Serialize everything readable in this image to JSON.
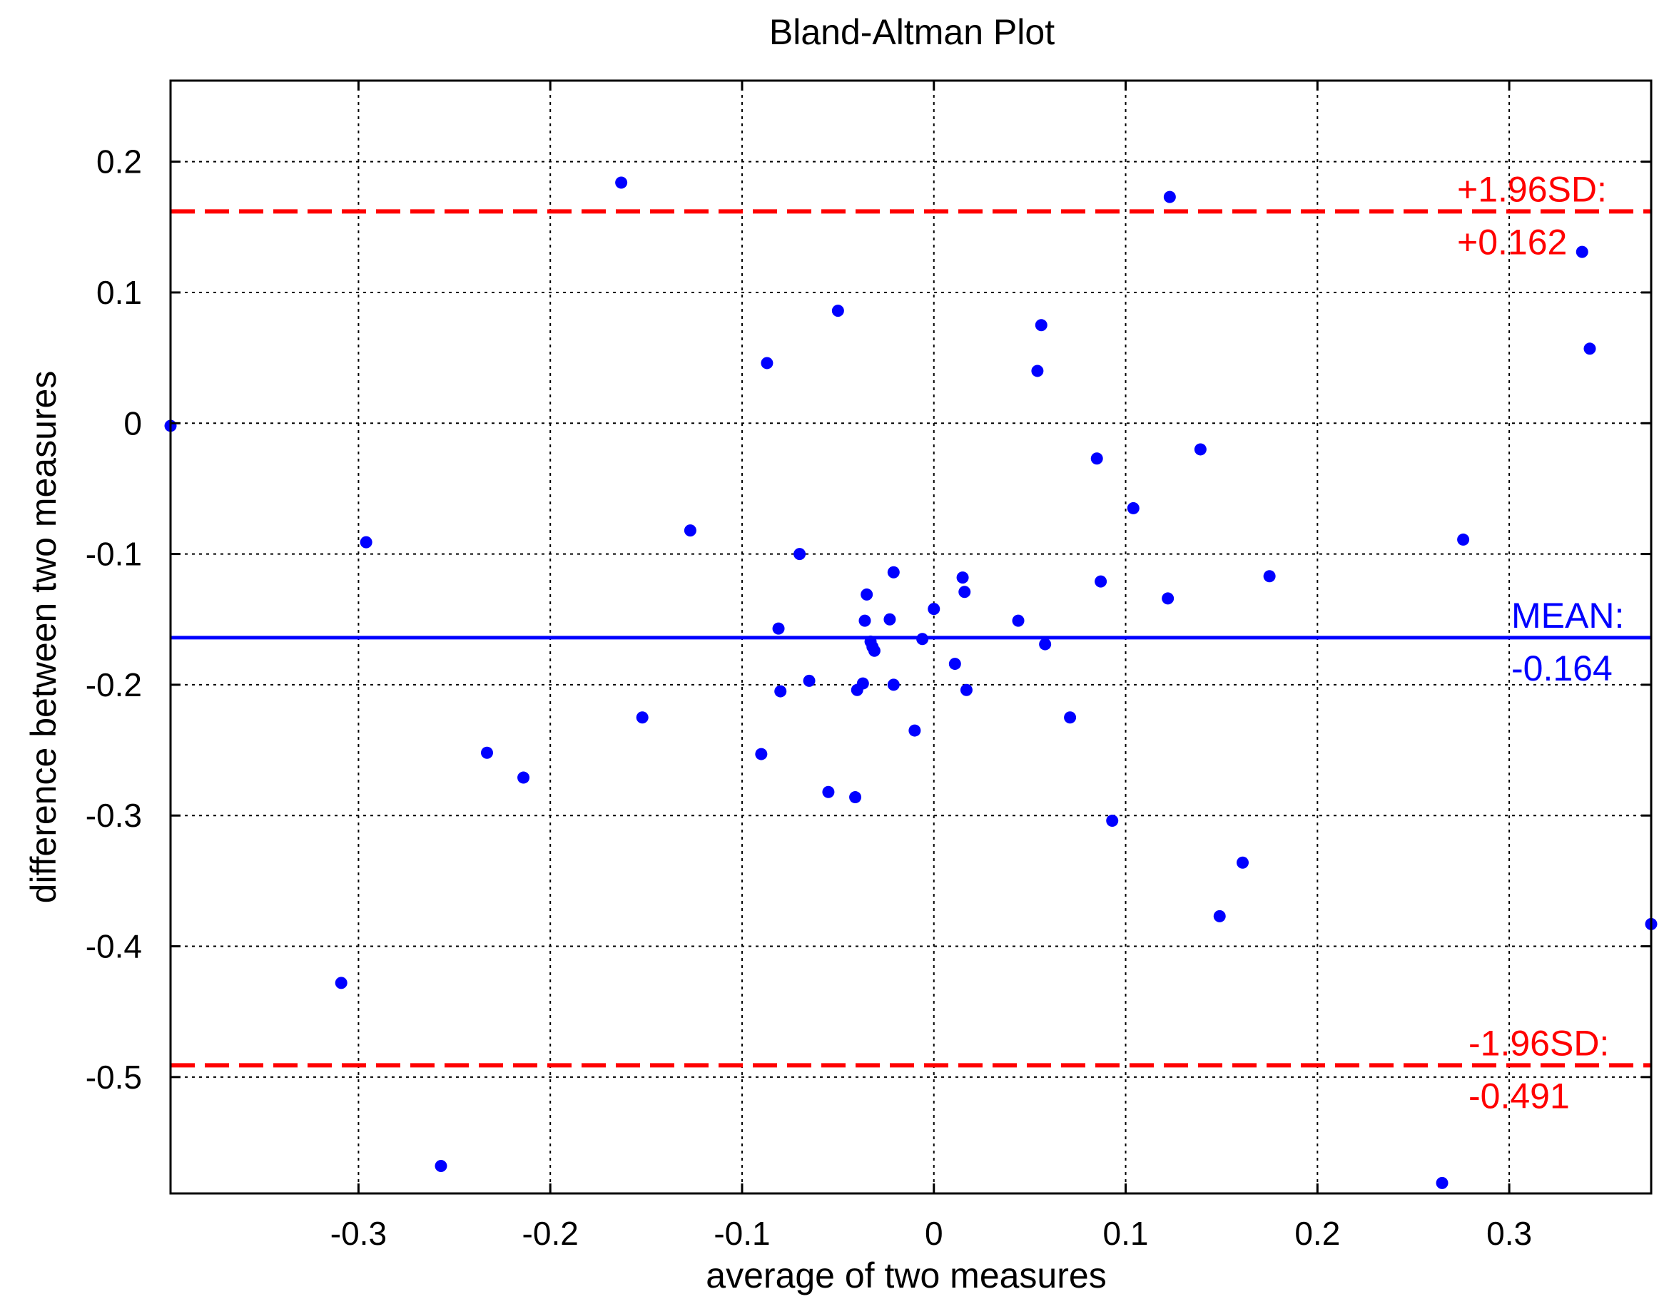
{
  "chart_data": {
    "type": "scatter",
    "title": "Bland-Altman Plot",
    "xlabel": "average of two measures",
    "ylabel": "difference between two measures",
    "xlim": [
      -0.398,
      0.374
    ],
    "ylim": [
      -0.589,
      0.262
    ],
    "xticks": [
      -0.3,
      -0.2,
      -0.1,
      0,
      0.1,
      0.2,
      0.3
    ],
    "yticks": [
      0.2,
      0.1,
      0,
      -0.1,
      -0.2,
      -0.3,
      -0.4,
      -0.5
    ],
    "xtick_labels": [
      "-0.3",
      "-0.2",
      "-0.1",
      "0",
      "0.1",
      "0.2",
      "0.3"
    ],
    "ytick_labels": [
      "0.2",
      "0.1",
      "0",
      "-0.1",
      "-0.2",
      "-0.3",
      "-0.4",
      "-0.5"
    ],
    "grid": true,
    "colors": {
      "points": "#0000ff",
      "mean": "#0000ff",
      "limits": "#ff0000",
      "grid": "#000000"
    },
    "reference_lines": [
      {
        "name": "upper-limit",
        "value": 0.162,
        "style": "dashed",
        "color": "#ff0000",
        "label_line1": "+1.96SD:",
        "label_line2": "+0.162"
      },
      {
        "name": "mean",
        "value": -0.164,
        "style": "solid",
        "color": "#0000ff",
        "label_line1": "MEAN:",
        "label_line2": "-0.164"
      },
      {
        "name": "lower-limit",
        "value": -0.491,
        "style": "dashed",
        "color": "#ff0000",
        "label_line1": "-1.96SD:",
        "label_line2": "-0.491"
      }
    ],
    "points": [
      {
        "x": -0.398,
        "y": -0.002
      },
      {
        "x": -0.296,
        "y": -0.091
      },
      {
        "x": -0.309,
        "y": -0.428
      },
      {
        "x": -0.257,
        "y": -0.568
      },
      {
        "x": -0.233,
        "y": -0.252
      },
      {
        "x": -0.214,
        "y": -0.271
      },
      {
        "x": -0.163,
        "y": 0.184
      },
      {
        "x": -0.152,
        "y": -0.225
      },
      {
        "x": -0.127,
        "y": -0.082
      },
      {
        "x": -0.09,
        "y": -0.253
      },
      {
        "x": -0.087,
        "y": 0.046
      },
      {
        "x": -0.081,
        "y": -0.157
      },
      {
        "x": -0.08,
        "y": -0.205
      },
      {
        "x": -0.07,
        "y": -0.1
      },
      {
        "x": -0.065,
        "y": -0.197
      },
      {
        "x": -0.055,
        "y": -0.282
      },
      {
        "x": -0.05,
        "y": 0.086
      },
      {
        "x": -0.041,
        "y": -0.286
      },
      {
        "x": -0.04,
        "y": -0.204
      },
      {
        "x": -0.037,
        "y": -0.199
      },
      {
        "x": -0.036,
        "y": -0.151
      },
      {
        "x": -0.035,
        "y": -0.131
      },
      {
        "x": -0.033,
        "y": -0.167
      },
      {
        "x": -0.032,
        "y": -0.171
      },
      {
        "x": -0.031,
        "y": -0.174
      },
      {
        "x": -0.023,
        "y": -0.15
      },
      {
        "x": -0.021,
        "y": -0.114
      },
      {
        "x": -0.021,
        "y": -0.2
      },
      {
        "x": -0.01,
        "y": -0.235
      },
      {
        "x": -0.006,
        "y": -0.165
      },
      {
        "x": 0.0,
        "y": -0.142
      },
      {
        "x": 0.011,
        "y": -0.184
      },
      {
        "x": 0.015,
        "y": -0.118
      },
      {
        "x": 0.016,
        "y": -0.129
      },
      {
        "x": 0.017,
        "y": -0.204
      },
      {
        "x": 0.044,
        "y": -0.151
      },
      {
        "x": 0.054,
        "y": 0.04
      },
      {
        "x": 0.056,
        "y": 0.075
      },
      {
        "x": 0.058,
        "y": -0.169
      },
      {
        "x": 0.071,
        "y": -0.225
      },
      {
        "x": 0.085,
        "y": -0.027
      },
      {
        "x": 0.087,
        "y": -0.121
      },
      {
        "x": 0.093,
        "y": -0.304
      },
      {
        "x": 0.104,
        "y": -0.065
      },
      {
        "x": 0.122,
        "y": -0.134
      },
      {
        "x": 0.123,
        "y": 0.173
      },
      {
        "x": 0.139,
        "y": -0.02
      },
      {
        "x": 0.149,
        "y": -0.377
      },
      {
        "x": 0.161,
        "y": -0.336
      },
      {
        "x": 0.175,
        "y": -0.117
      },
      {
        "x": 0.276,
        "y": -0.089
      },
      {
        "x": 0.265,
        "y": -0.581
      },
      {
        "x": 0.338,
        "y": 0.131
      },
      {
        "x": 0.342,
        "y": 0.057
      },
      {
        "x": 0.374,
        "y": -0.383
      }
    ]
  }
}
